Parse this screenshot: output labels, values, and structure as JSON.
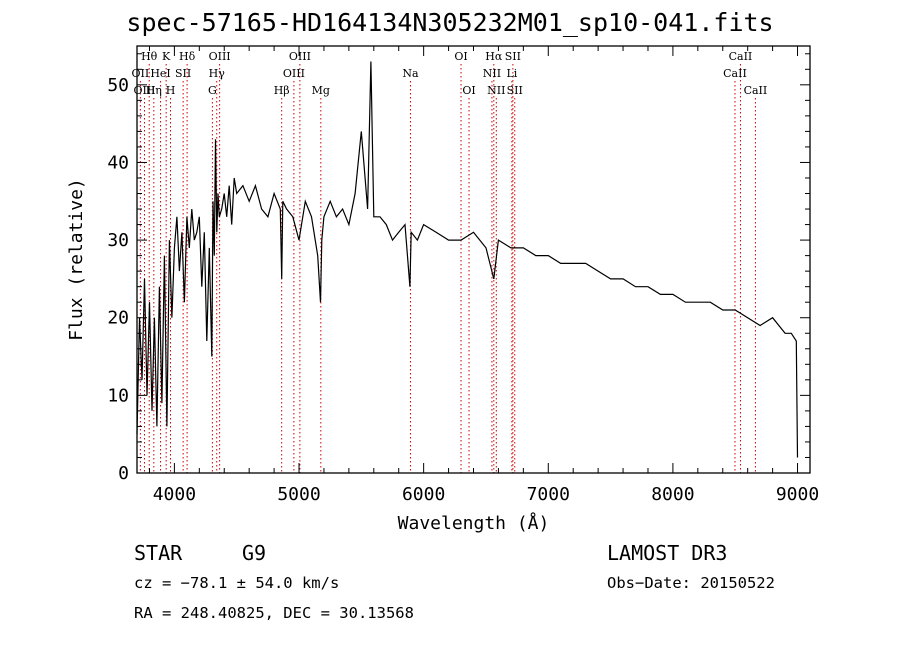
{
  "chart_data": {
    "type": "line",
    "title": "spec-57165-HD164134N305232M01_sp10-041.fits",
    "xlabel": "Wavelength (Å)",
    "ylabel": "Flux (relative)",
    "xlim": [
      3700,
      9100
    ],
    "ylim": [
      0,
      55
    ],
    "xticks": [
      4000,
      5000,
      6000,
      7000,
      8000,
      9000
    ],
    "yticks": [
      0,
      10,
      20,
      30,
      40,
      50
    ],
    "grid": false,
    "series": [
      {
        "name": "spectrum",
        "x": [
          3700,
          3720,
          3740,
          3760,
          3780,
          3800,
          3820,
          3840,
          3860,
          3880,
          3900,
          3920,
          3940,
          3960,
          3980,
          4000,
          4020,
          4040,
          4060,
          4080,
          4100,
          4120,
          4140,
          4160,
          4180,
          4200,
          4220,
          4240,
          4260,
          4280,
          4300,
          4310,
          4320,
          4330,
          4340,
          4350,
          4360,
          4380,
          4400,
          4420,
          4440,
          4460,
          4480,
          4500,
          4550,
          4600,
          4650,
          4700,
          4750,
          4800,
          4850,
          4861,
          4870,
          4900,
          4950,
          5000,
          5050,
          5100,
          5150,
          5172,
          5183,
          5200,
          5250,
          5300,
          5350,
          5400,
          5450,
          5500,
          5550,
          5577,
          5600,
          5650,
          5700,
          5750,
          5800,
          5850,
          5890,
          5900,
          5950,
          6000,
          6100,
          6200,
          6300,
          6400,
          6500,
          6563,
          6600,
          6700,
          6800,
          6900,
          7000,
          7100,
          7200,
          7300,
          7400,
          7500,
          7600,
          7700,
          7800,
          7900,
          8000,
          8100,
          8200,
          8300,
          8400,
          8500,
          8600,
          8700,
          8800,
          8900,
          8950,
          8990,
          9000
        ],
        "values": [
          5,
          20,
          12,
          25,
          10,
          22,
          8,
          20,
          6,
          24,
          9,
          28,
          6,
          30,
          20,
          29,
          33,
          26,
          31,
          22,
          33,
          29,
          34,
          30,
          31,
          33,
          24,
          31,
          17,
          29,
          15,
          35,
          28,
          43,
          31,
          36,
          33,
          34,
          36,
          33,
          37,
          32,
          38,
          36,
          37,
          35,
          37,
          34,
          33,
          36,
          34,
          25,
          35,
          34,
          33,
          30,
          35,
          33,
          28,
          22,
          30,
          33,
          35,
          33,
          34,
          32,
          36,
          44,
          34,
          53,
          33,
          33,
          32,
          30,
          31,
          32,
          24,
          31,
          30,
          32,
          31,
          30,
          30,
          31,
          29,
          25,
          30,
          29,
          29,
          28,
          28,
          27,
          27,
          27,
          26,
          25,
          25,
          24,
          24,
          23,
          23,
          22,
          22,
          22,
          21,
          21,
          20,
          19,
          20,
          18,
          18,
          17,
          2
        ]
      }
    ],
    "annotations": [
      {
        "label": "Hθ",
        "x": 3798,
        "row": 1
      },
      {
        "label": "OII",
        "x": 3727,
        "row": 2
      },
      {
        "label": "OIII",
        "x": 3760,
        "row": 3
      },
      {
        "label": "K",
        "x": 3934,
        "row": 1
      },
      {
        "label": "HeI",
        "x": 3889,
        "row": 2
      },
      {
        "label": "Hη",
        "x": 3835,
        "row": 3
      },
      {
        "label": "Hδ",
        "x": 4102,
        "row": 1
      },
      {
        "label": "SII",
        "x": 4070,
        "row": 2
      },
      {
        "label": "H",
        "x": 3969,
        "row": 3
      },
      {
        "label": "OIII",
        "x": 4363,
        "row": 1
      },
      {
        "label": "Hγ",
        "x": 4340,
        "row": 2
      },
      {
        "label": "G",
        "x": 4305,
        "row": 3
      },
      {
        "label": "OIII",
        "x": 5007,
        "row": 1
      },
      {
        "label": "OIII",
        "x": 4959,
        "row": 2
      },
      {
        "label": "Hβ",
        "x": 4861,
        "row": 3
      },
      {
        "label": "Mg",
        "x": 5175,
        "row": 3
      },
      {
        "label": "Na",
        "x": 5894,
        "row": 2
      },
      {
        "label": "OI",
        "x": 6300,
        "row": 1
      },
      {
        "label": "OI",
        "x": 6364,
        "row": 3
      },
      {
        "label": "Hα",
        "x": 6563,
        "row": 1
      },
      {
        "label": "NII",
        "x": 6548,
        "row": 2
      },
      {
        "label": "NII",
        "x": 6583,
        "row": 3
      },
      {
        "label": "SII",
        "x": 6716,
        "row": 1
      },
      {
        "label": "Li",
        "x": 6708,
        "row": 2
      },
      {
        "label": "SII",
        "x": 6731,
        "row": 3
      },
      {
        "label": "CaII",
        "x": 8542,
        "row": 1
      },
      {
        "label": "CaII",
        "x": 8498,
        "row": 2
      },
      {
        "label": "CaII",
        "x": 8662,
        "row": 3
      }
    ]
  },
  "info": {
    "object_class": "STAR",
    "subclass": "G9",
    "survey": "LAMOST DR3",
    "cz": "cz = −78.1 ± 54.0 km/s",
    "obs_date": "Obs−Date: 20150522",
    "coords": "RA = 248.40825, DEC =  30.13568"
  },
  "colors": {
    "spectrum": "#000000",
    "line_markers": "#cc0000",
    "axes": "#000000"
  }
}
